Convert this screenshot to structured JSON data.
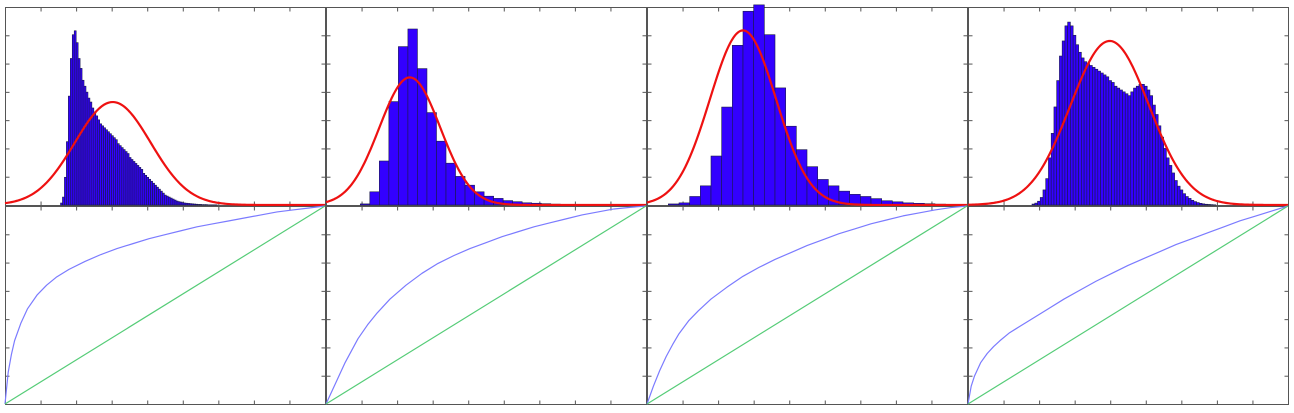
{
  "colors": {
    "histogram_fill": "#3300ff",
    "histogram_edge": "#1a1a4a",
    "normal_fit_line": "#ee1111",
    "cumulative_curve": "#7b7bff",
    "diagonal_line": "#55cc77",
    "frame": "#555555",
    "background": "#ffffff"
  },
  "chart_data": [
    {
      "type": "bar",
      "panel": "top-1",
      "x": [
        -0.05,
        -0.02,
        0.01,
        0.04,
        0.07,
        0.1,
        0.13,
        0.16,
        0.19,
        0.22,
        0.25,
        0.28,
        0.31,
        0.34,
        0.37,
        0.4,
        0.43,
        0.46,
        0.49,
        0.52,
        0.55,
        0.58,
        0.61,
        0.64,
        0.67,
        0.7,
        0.73,
        0.76,
        0.79,
        0.82,
        0.85,
        0.88,
        0.91,
        0.94,
        0.97,
        1.0,
        1.03,
        1.06,
        1.09,
        1.12,
        1.15,
        1.18,
        1.21,
        1.24,
        1.27,
        1.3,
        1.33,
        1.36,
        1.39,
        1.42,
        1.45,
        1.48,
        1.51,
        1.54,
        1.57,
        1.6,
        1.63,
        1.66,
        1.69,
        1.72,
        1.75,
        1.78,
        1.81,
        1.84,
        1.87,
        1.9,
        1.93,
        1.96,
        1.99,
        2.02,
        2.05,
        2.08,
        2.11,
        2.14,
        2.17,
        2.2,
        2.23,
        2.26,
        2.29,
        2.32
      ],
      "values": [
        0.01,
        0.04,
        0.14,
        0.32,
        0.55,
        0.74,
        0.86,
        0.88,
        0.82,
        0.74,
        0.69,
        0.63,
        0.6,
        0.57,
        0.54,
        0.52,
        0.49,
        0.47,
        0.45,
        0.43,
        0.41,
        0.4,
        0.39,
        0.38,
        0.37,
        0.36,
        0.35,
        0.34,
        0.33,
        0.31,
        0.3,
        0.29,
        0.28,
        0.27,
        0.26,
        0.24,
        0.23,
        0.22,
        0.21,
        0.2,
        0.19,
        0.18,
        0.16,
        0.15,
        0.14,
        0.13,
        0.12,
        0.11,
        0.1,
        0.09,
        0.08,
        0.07,
        0.06,
        0.05,
        0.045,
        0.04,
        0.035,
        0.03,
        0.025,
        0.02,
        0.017,
        0.015,
        0.012,
        0.01,
        0.009,
        0.008,
        0.007,
        0.006,
        0.005,
        0.004,
        0.003,
        0.003,
        0.002,
        0.002,
        0.002,
        0.001,
        0.001,
        0.001,
        0.001,
        0.001
      ],
      "bin_width": 0.03,
      "xlim": [
        -0.9,
        4.0
      ],
      "ylim": [
        0,
        1.0
      ],
      "fit_curve": {
        "mean": 0.75,
        "std": 0.58,
        "peak": 0.52
      }
    },
    {
      "type": "bar",
      "panel": "top-2",
      "x": [
        -1.0,
        -0.5,
        0.0,
        0.5,
        1.0,
        1.5,
        2.0,
        2.5,
        3.0,
        3.5,
        4.0,
        4.5,
        5.0,
        5.5,
        6.0,
        6.5,
        7.0,
        7.5,
        8.0,
        8.5,
        9.0,
        9.5,
        10.0,
        10.5,
        11.0
      ],
      "values": [
        0.005,
        0.06,
        0.2,
        0.47,
        0.72,
        0.8,
        0.62,
        0.42,
        0.29,
        0.19,
        0.13,
        0.09,
        0.06,
        0.04,
        0.03,
        0.02,
        0.015,
        0.01,
        0.008,
        0.006,
        0.004,
        0.003,
        0.002,
        0.002,
        0.001
      ],
      "bin_width": 0.5,
      "xlim": [
        -2.8,
        14.0
      ],
      "ylim": [
        0,
        0.9
      ],
      "fit_curve": {
        "mean": 1.6,
        "std": 1.6,
        "peak": 0.58
      }
    },
    {
      "type": "bar",
      "panel": "top-3",
      "x": [
        -2.0,
        -1.5,
        -1.0,
        -0.5,
        0.0,
        0.5,
        1.0,
        1.5,
        2.0,
        2.5,
        3.0,
        3.5,
        4.0,
        4.5,
        5.0,
        5.5,
        6.0,
        6.5,
        7.0,
        7.5,
        8.0,
        8.5,
        9.0,
        9.5,
        10.0,
        10.5
      ],
      "values": [
        0.005,
        0.01,
        0.04,
        0.09,
        0.23,
        0.46,
        0.75,
        0.91,
        0.94,
        0.8,
        0.55,
        0.37,
        0.26,
        0.18,
        0.12,
        0.09,
        0.065,
        0.05,
        0.04,
        0.03,
        0.02,
        0.015,
        0.01,
        0.008,
        0.006,
        0.004
      ],
      "bin_width": 0.5,
      "xlim": [
        -3.0,
        12.0
      ],
      "ylim": [
        0,
        0.93
      ],
      "fit_curve": {
        "mean": 1.5,
        "std": 1.55,
        "peak": 0.82
      }
    },
    {
      "type": "bar",
      "panel": "top-4",
      "x": [
        -0.3,
        -0.27,
        -0.24,
        -0.21,
        -0.18,
        -0.15,
        -0.12,
        -0.09,
        -0.06,
        -0.03,
        0.0,
        0.03,
        0.06,
        0.09,
        0.12,
        0.15,
        0.18,
        0.21,
        0.24,
        0.27,
        0.3,
        0.33,
        0.36,
        0.39,
        0.42,
        0.45,
        0.48,
        0.51,
        0.54,
        0.57,
        0.6,
        0.63,
        0.66,
        0.69,
        0.72,
        0.75,
        0.78,
        0.81,
        0.84,
        0.87,
        0.9,
        0.93,
        0.96,
        0.99,
        1.02,
        1.05,
        1.08,
        1.11,
        1.14,
        1.17,
        1.2,
        1.23,
        1.26,
        1.29,
        1.32,
        1.35,
        1.38,
        1.41,
        1.44,
        1.47,
        1.5,
        1.53,
        1.56,
        1.59,
        1.62,
        1.65,
        1.68
      ],
      "values": [
        0.005,
        0.01,
        0.02,
        0.04,
        0.08,
        0.14,
        0.25,
        0.38,
        0.52,
        0.66,
        0.79,
        0.87,
        0.95,
        0.97,
        0.95,
        0.9,
        0.85,
        0.81,
        0.78,
        0.76,
        0.75,
        0.74,
        0.73,
        0.72,
        0.71,
        0.7,
        0.69,
        0.68,
        0.66,
        0.65,
        0.63,
        0.62,
        0.61,
        0.6,
        0.59,
        0.58,
        0.6,
        0.62,
        0.63,
        0.64,
        0.64,
        0.63,
        0.61,
        0.58,
        0.53,
        0.48,
        0.42,
        0.36,
        0.3,
        0.25,
        0.21,
        0.17,
        0.13,
        0.1,
        0.08,
        0.06,
        0.045,
        0.035,
        0.025,
        0.018,
        0.013,
        0.009,
        0.006,
        0.004,
        0.003,
        0.002,
        0.001
      ],
      "bin_width": 0.03,
      "xlim": [
        -1.0,
        2.5
      ],
      "ylim": [
        0,
        1.05
      ],
      "fit_curve": {
        "mean": 0.55,
        "std": 0.43,
        "peak": 0.87
      }
    },
    {
      "type": "line",
      "panel": "bottom-1",
      "xlim": [
        0,
        1
      ],
      "ylim": [
        0,
        1
      ],
      "series": [
        {
          "role": "cumulative",
          "x": [
            0,
            0.01,
            0.02,
            0.03,
            0.05,
            0.07,
            0.1,
            0.13,
            0.16,
            0.2,
            0.25,
            0.3,
            0.35,
            0.4,
            0.45,
            0.5,
            0.55,
            0.6,
            0.65,
            0.7,
            0.75,
            0.8,
            0.85,
            0.9,
            0.95,
            1.0
          ],
          "values": [
            0,
            0.16,
            0.25,
            0.32,
            0.41,
            0.48,
            0.55,
            0.6,
            0.64,
            0.68,
            0.72,
            0.755,
            0.785,
            0.81,
            0.835,
            0.855,
            0.875,
            0.895,
            0.91,
            0.925,
            0.94,
            0.955,
            0.97,
            0.98,
            0.99,
            1.0
          ]
        },
        {
          "role": "diagonal",
          "x": [
            0,
            1
          ],
          "values": [
            0,
            1
          ]
        }
      ]
    },
    {
      "type": "line",
      "panel": "bottom-2",
      "xlim": [
        0,
        1
      ],
      "ylim": [
        0,
        1
      ],
      "series": [
        {
          "role": "cumulative",
          "x": [
            0,
            0.02,
            0.04,
            0.06,
            0.08,
            0.1,
            0.13,
            0.16,
            0.2,
            0.25,
            0.3,
            0.35,
            0.4,
            0.45,
            0.5,
            0.55,
            0.6,
            0.65,
            0.7,
            0.75,
            0.8,
            0.85,
            0.9,
            0.95,
            1.0
          ],
          "values": [
            0,
            0.07,
            0.14,
            0.21,
            0.27,
            0.33,
            0.4,
            0.46,
            0.53,
            0.6,
            0.66,
            0.71,
            0.75,
            0.785,
            0.815,
            0.845,
            0.87,
            0.895,
            0.915,
            0.935,
            0.955,
            0.97,
            0.985,
            0.993,
            1.0
          ]
        },
        {
          "role": "diagonal",
          "x": [
            0,
            1
          ],
          "values": [
            0,
            1
          ]
        }
      ]
    },
    {
      "type": "line",
      "panel": "bottom-3",
      "xlim": [
        0,
        1
      ],
      "ylim": [
        0,
        1
      ],
      "series": [
        {
          "role": "cumulative",
          "x": [
            0,
            0.02,
            0.04,
            0.06,
            0.08,
            0.1,
            0.13,
            0.16,
            0.2,
            0.25,
            0.3,
            0.35,
            0.4,
            0.45,
            0.5,
            0.55,
            0.6,
            0.65,
            0.7,
            0.75,
            0.8,
            0.85,
            0.9,
            0.95,
            1.0
          ],
          "values": [
            0,
            0.09,
            0.17,
            0.24,
            0.3,
            0.355,
            0.42,
            0.47,
            0.53,
            0.59,
            0.645,
            0.69,
            0.73,
            0.765,
            0.8,
            0.83,
            0.86,
            0.885,
            0.91,
            0.93,
            0.95,
            0.965,
            0.98,
            0.992,
            1.0
          ]
        },
        {
          "role": "diagonal",
          "x": [
            0,
            1
          ],
          "values": [
            0,
            1
          ]
        }
      ]
    },
    {
      "type": "line",
      "panel": "bottom-4",
      "xlim": [
        0,
        1
      ],
      "ylim": [
        0,
        1
      ],
      "series": [
        {
          "role": "cumulative",
          "x": [
            0,
            0.01,
            0.02,
            0.04,
            0.06,
            0.08,
            0.1,
            0.13,
            0.16,
            0.2,
            0.25,
            0.3,
            0.35,
            0.4,
            0.45,
            0.5,
            0.55,
            0.6,
            0.65,
            0.7,
            0.75,
            0.8,
            0.85,
            0.9,
            0.95,
            1.0
          ],
          "values": [
            0,
            0.09,
            0.14,
            0.21,
            0.255,
            0.29,
            0.32,
            0.36,
            0.39,
            0.43,
            0.48,
            0.53,
            0.575,
            0.62,
            0.66,
            0.7,
            0.735,
            0.77,
            0.805,
            0.835,
            0.865,
            0.895,
            0.925,
            0.95,
            0.975,
            1.0
          ]
        },
        {
          "role": "diagonal",
          "x": [
            0,
            1
          ],
          "values": [
            0,
            1
          ]
        }
      ]
    }
  ]
}
